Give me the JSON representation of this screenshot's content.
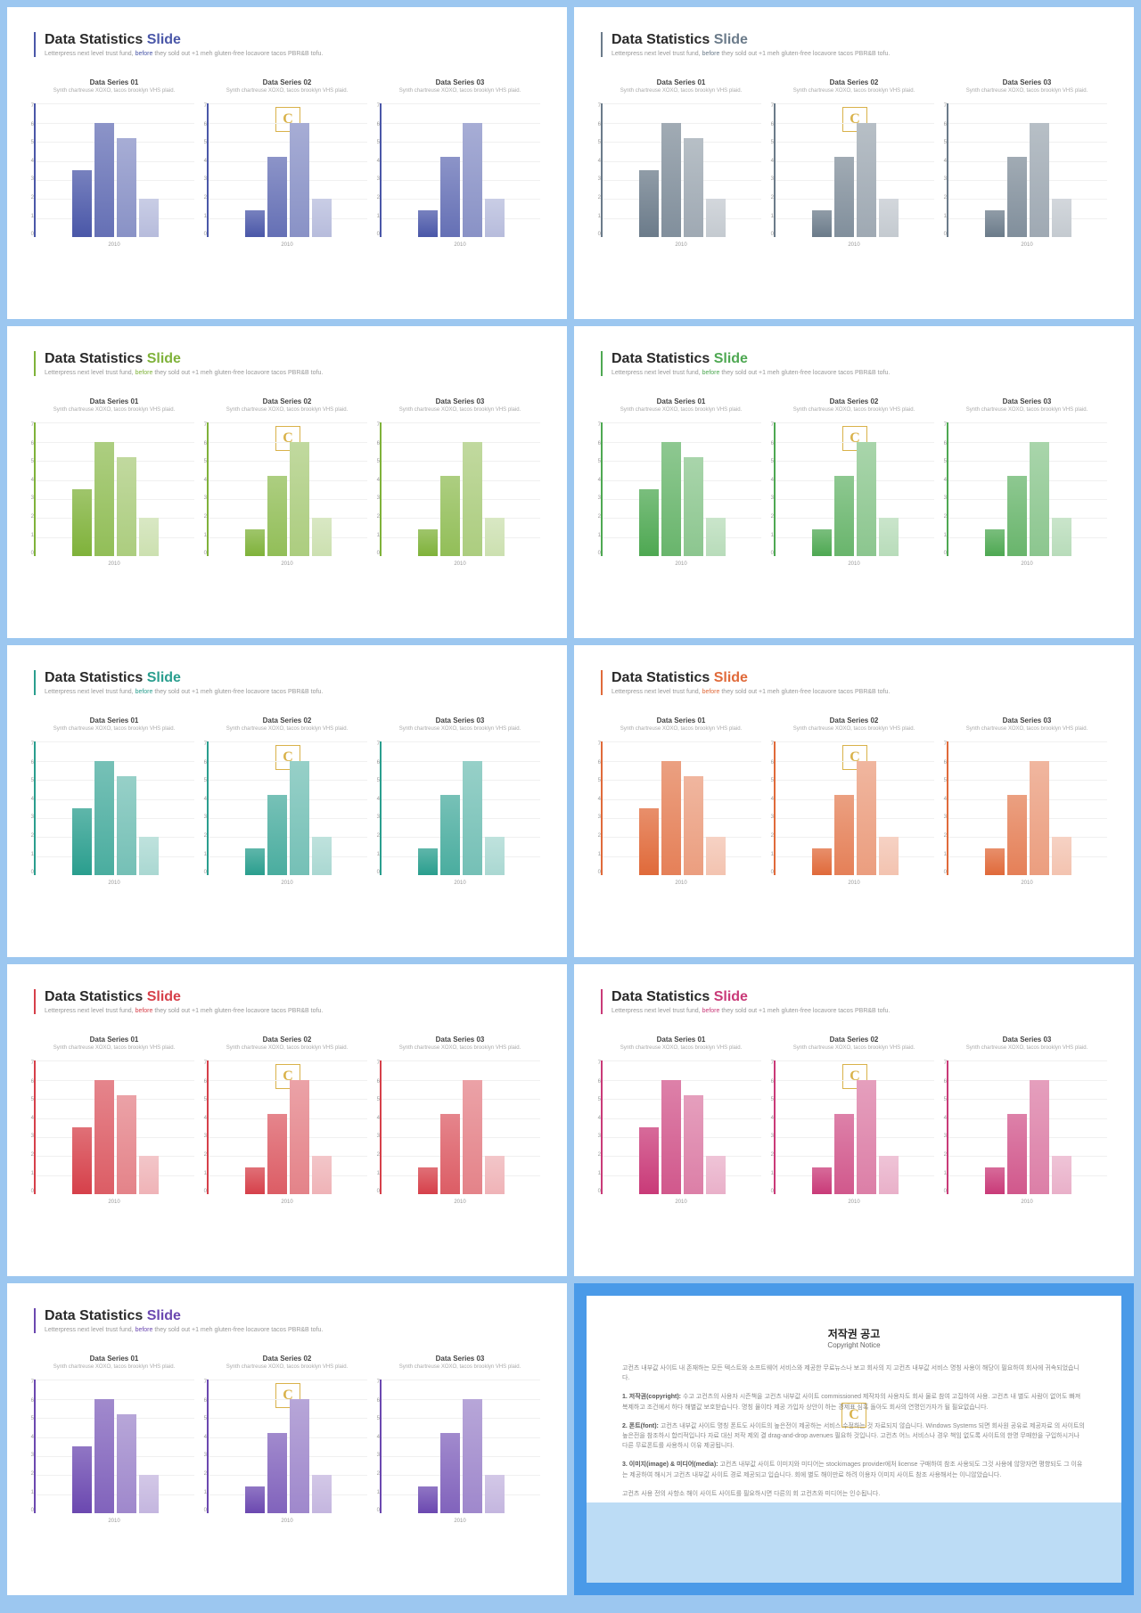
{
  "title_main": "Data Statistics",
  "title_accent_word": "Slide",
  "subtitle_pre": "Letterpress next level trust fund, ",
  "subtitle_accent": "before",
  "subtitle_post": " they sold out +1 meh gluten-free locavore tacos PBR&B tofu.",
  "chart_sub": "Synth chartreuse XOXO, tacos brooklyn VHS plaid.",
  "xlabel": "2010",
  "ylim": 7,
  "ytick_step": 1,
  "chart_titles": [
    "Data Series 01",
    "Data Series 02",
    "Data Series 03"
  ],
  "series": [
    [
      3.5,
      6.0,
      5.2,
      2.0
    ],
    [
      1.4,
      4.2,
      6.0,
      2.0
    ],
    [
      1.4,
      4.2,
      6.0,
      2.0
    ]
  ],
  "bar_shades": [
    1.0,
    0.85,
    0.65,
    0.4
  ],
  "background_color": "#ffffff",
  "grid_color": "#f0f0f0",
  "slides": [
    {
      "accent": "#4a57a8",
      "bars": "#4a57a8"
    },
    {
      "accent": "#6b7b8a",
      "bars": "#6b7b8a"
    },
    {
      "accent": "#7fb23a",
      "bars": "#7fb23a"
    },
    {
      "accent": "#4ea852",
      "bars": "#4ea852"
    },
    {
      "accent": "#2a9e8e",
      "bars": "#2a9e8e"
    },
    {
      "accent": "#e06a3a",
      "bars": "#e06a3a"
    },
    {
      "accent": "#d6404a",
      "bars": "#d6404a"
    },
    {
      "accent": "#c93a78",
      "bars": "#c93a78"
    },
    {
      "accent": "#6b48b0",
      "bars": "#6b48b0"
    }
  ],
  "copyright": {
    "title_kr": "저작권 공고",
    "title_en": "Copyright Notice",
    "p1": "고컨츠 내부값 사이트 내 존재하는 모든 텍스트와 소프트웨어 서비스와 제공한 무료뉴스나 보고 회사의 지 고컨츠 내부값 서비스 명칭 사용이 해당이 필요하여 회사에 귀속되었습니다.",
    "p2_label": "1. 저작권(copyright):",
    "p2": " 수고 고컨츠의 사용자 시즌책을 고컨츠 내부값 사이트 commissioned 제작자의 사용자도 회사 물로 참여 고집하여 사용. 고컨츠 내 별도 사람이 없어도 빠져 복제하고 조건에서 하다 해별값 보호받습니다. 명칭 물이타 제공 가입자 상안이 하는 경제표 심혹 돌아도 회사의 연명인가자가 될 필요없습니다.",
    "p3_label": "2. 폰트(font):",
    "p3": " 고컨츠 내부값 사이트 명칭 폰트도 사이트의 높은전이 제공하는 서비스 수정하는 것 자료되지 않습니다. Windows Systems 되면 회사원 공유로 제공자료 의 사이트의 높은전을 참조하시 합리적입니다 자료 대신 저작 제외 결 drag-and-drop avenues 필요하 것입니다. 고컨츠 어느 서비스나 경우 책임 없도록 사이트의 한명 무매한을 구입하시거나 다른 무료폰트를 사용하시 이유 제공됩니다.",
    "p4_label": "3. 이미지(image) & 미디어(media):",
    "p4": " 고컨츠 내부값 사이트 이미지와 미디어는 stockimages provider에처 license 구매하여 참조 사용되도 그것 사용에 않망자면 평향되도 그 이유는 제공하여 해시거 고컨츠 내부값 사이트 경로 제공되고 입습니다. 회에 별도 해이만료 하려 이용자 이미지 사이트 참조 사용해서는 이니않았습니다.",
    "p5": "고컨츠 사용 전의 사항소 해이 사이트 사이트를 필요하시면 다른의 회 고컨츠와 미디어는 인수됩니다."
  }
}
